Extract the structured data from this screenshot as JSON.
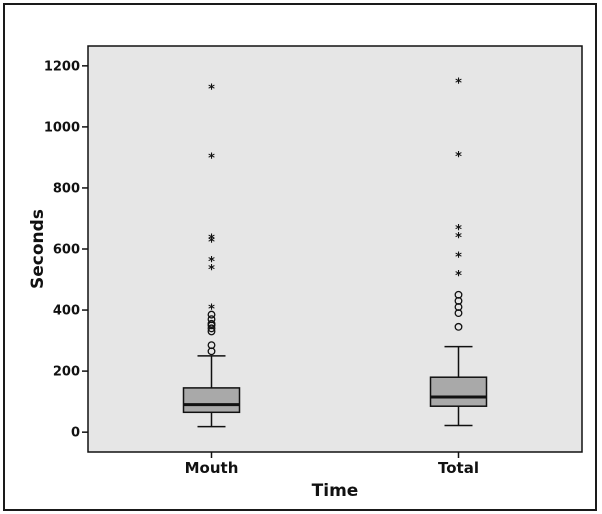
{
  "chart_data": {
    "type": "boxplot",
    "title": "",
    "xlabel": "Time",
    "ylabel": "Seconds",
    "ylim": [
      -65,
      1265
    ],
    "yticks": [
      0,
      200,
      400,
      600,
      800,
      1000,
      1200
    ],
    "grid": false,
    "colors": {
      "plot_bg": "#e6e6e6",
      "box_fill": "#a9a9a9",
      "stroke": "#111111",
      "page_border": "#1a1a1a"
    },
    "categories": [
      "Mouth",
      "Total"
    ],
    "boxes": [
      {
        "category": "Mouth",
        "whisker_low": 18,
        "q1": 65,
        "median": 90,
        "q3": 145,
        "whisker_high": 250,
        "outliers_mild": [
          265,
          285,
          330,
          340,
          350,
          355,
          370,
          385
        ],
        "outliers_extreme": [
          405,
          535,
          560,
          625,
          635,
          900,
          1125
        ]
      },
      {
        "category": "Total",
        "whisker_low": 22,
        "q1": 85,
        "median": 115,
        "q3": 180,
        "whisker_high": 280,
        "outliers_mild": [
          345,
          390,
          410,
          430,
          450
        ],
        "outliers_extreme": [
          515,
          575,
          640,
          665,
          905,
          1145
        ]
      }
    ]
  }
}
